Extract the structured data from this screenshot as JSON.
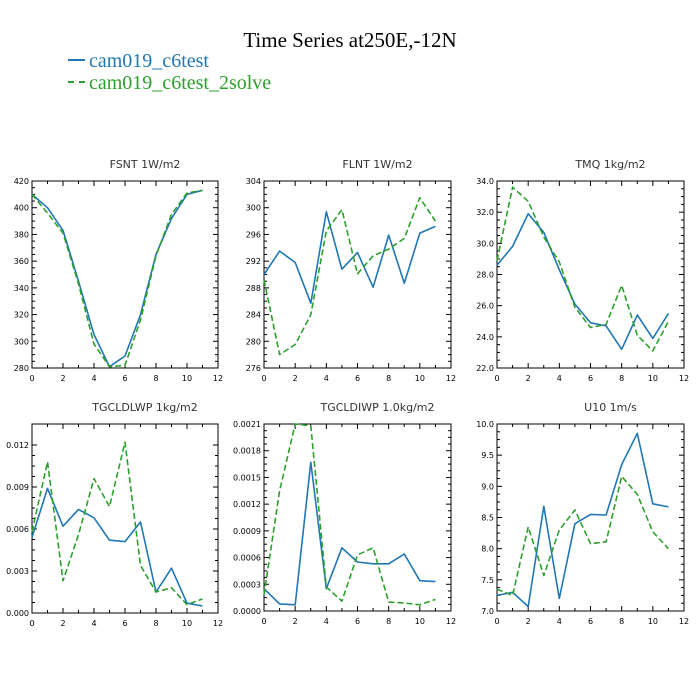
{
  "title": "Time Series at250E,-12N",
  "legend": [
    {
      "name": "cam019_c6test",
      "color": "#1f77b4",
      "dash": false
    },
    {
      "name": "cam019_c6test_2solve",
      "color": "#2ca02c",
      "dash": true
    }
  ],
  "chart_data": [
    {
      "type": "line",
      "title": "FSNT  1W/m2",
      "xlim": [
        0,
        12
      ],
      "xticks": [
        "0",
        "2",
        "4",
        "6",
        "8",
        "10",
        "12"
      ],
      "ylim": [
        280,
        420
      ],
      "yticks": [
        "280",
        "300",
        "320",
        "340",
        "360",
        "380",
        "400",
        "420"
      ],
      "x": [
        0,
        1,
        2,
        3,
        4,
        5,
        6,
        7,
        8,
        9,
        10,
        11
      ],
      "series": [
        {
          "name": "cam019_c6test",
          "values": [
            410,
            400,
            383,
            345,
            305,
            281,
            289,
            320,
            365,
            392,
            410,
            413
          ]
        },
        {
          "name": "cam019_c6test_2solve",
          "values": [
            410,
            396,
            381,
            343,
            298,
            281,
            282,
            316,
            364,
            395,
            411,
            413
          ]
        }
      ]
    },
    {
      "type": "line",
      "title": "FLNT  1W/m2",
      "xlim": [
        0,
        12
      ],
      "xticks": [
        "0",
        "2",
        "4",
        "6",
        "8",
        "10",
        "12"
      ],
      "ylim": [
        276,
        304
      ],
      "yticks": [
        "276",
        "280",
        "284",
        "288",
        "292",
        "296",
        "300",
        "304"
      ],
      "x": [
        0,
        1,
        2,
        3,
        4,
        5,
        6,
        7,
        8,
        9,
        10,
        11
      ],
      "series": [
        {
          "name": "cam019_c6test",
          "values": [
            290,
            293.5,
            291.8,
            285.7,
            299.4,
            290.8,
            293.3,
            288.1,
            295.9,
            288.7,
            296.2,
            297.2
          ]
        },
        {
          "name": "cam019_c6test_2solve",
          "values": [
            289.2,
            278,
            279.5,
            284,
            296.5,
            299.7,
            290.1,
            292.8,
            293.8,
            295.4,
            301.5,
            298
          ]
        }
      ]
    },
    {
      "type": "line",
      "title": "TMQ  1kg/m2",
      "xlim": [
        0,
        12
      ],
      "xticks": [
        "0",
        "2",
        "4",
        "6",
        "8",
        "10",
        "12"
      ],
      "ylim": [
        22,
        34
      ],
      "yticks": [
        "22.0",
        "24.0",
        "26.0",
        "28.0",
        "30.0",
        "32.0",
        "34.0"
      ],
      "x": [
        0,
        1,
        2,
        3,
        4,
        5,
        6,
        7,
        8,
        9,
        10,
        11
      ],
      "series": [
        {
          "name": "cam019_c6test",
          "values": [
            28.6,
            29.8,
            31.9,
            30.7,
            28.3,
            26.1,
            24.9,
            24.7,
            23.2,
            25.4,
            23.9,
            25.5
          ]
        },
        {
          "name": "cam019_c6test_2solve",
          "values": [
            28.9,
            33.6,
            32.7,
            30.4,
            28.8,
            25.9,
            24.6,
            24.8,
            27.3,
            24.1,
            23.1,
            25
          ]
        }
      ]
    },
    {
      "type": "line",
      "title": "TGCLDLWP  1kg/m2",
      "xlim": [
        0,
        12
      ],
      "xticks": [
        "0",
        "2",
        "4",
        "6",
        "8",
        "10",
        "12"
      ],
      "ylim": [
        0,
        0.0135
      ],
      "yticks": [
        "0.000",
        "0.003",
        "0.006",
        "0.009",
        "0.012"
      ],
      "ytick_values": [
        0,
        0.003,
        0.006,
        0.009,
        0.012
      ],
      "x": [
        0,
        1,
        2,
        3,
        4,
        5,
        6,
        7,
        8,
        9,
        10,
        11
      ],
      "series": [
        {
          "name": "cam019_c6test",
          "values": [
            0.0054,
            0.0089,
            0.0062,
            0.0074,
            0.0068,
            0.0052,
            0.0051,
            0.0065,
            0.0015,
            0.0032,
            0.0007,
            0.0005
          ]
        },
        {
          "name": "cam019_c6test_2solve",
          "values": [
            0.0058,
            0.0108,
            0.0023,
            0.0056,
            0.0096,
            0.0076,
            0.0122,
            0.0034,
            0.0015,
            0.0018,
            0.0006,
            0.001
          ]
        }
      ]
    },
    {
      "type": "line",
      "title": "TGCLDIWP  1.0kg/m2",
      "xlim": [
        0,
        12
      ],
      "xticks": [
        "0",
        "2",
        "4",
        "6",
        "8",
        "10",
        "12"
      ],
      "ylim": [
        0,
        0.0021
      ],
      "yticks": [
        "0.0000",
        "0.0003",
        "0.0006",
        "0.0009",
        "0.0012",
        "0.0015",
        "0.0018",
        "0.0021"
      ],
      "ytick_values": [
        0,
        0.0003,
        0.0006,
        0.0009,
        0.0012,
        0.0015,
        0.0018,
        0.0021
      ],
      "x": [
        0,
        1,
        2,
        3,
        4,
        5,
        6,
        7,
        8,
        9,
        10,
        11
      ],
      "series": [
        {
          "name": "cam019_c6test",
          "values": [
            0.00025,
            8e-05,
            7e-05,
            0.00167,
            0.00025,
            0.00071,
            0.00055,
            0.00053,
            0.00053,
            0.00064,
            0.00034,
            0.00033
          ]
        },
        {
          "name": "cam019_c6test_2solve",
          "values": [
            0.00018,
            0.00135,
            0.0021,
            0.00208,
            0.00027,
            0.00011,
            0.00063,
            0.00071,
            0.0001,
            9e-05,
            7e-05,
            0.00013
          ]
        }
      ]
    },
    {
      "type": "line",
      "title": "U10  1m/s",
      "xlim": [
        0,
        12
      ],
      "xticks": [
        "0",
        "2",
        "4",
        "6",
        "8",
        "10",
        "12"
      ],
      "ylim": [
        7,
        10
      ],
      "yticks": [
        "7.0",
        "7.5",
        "8.0",
        "8.5",
        "9.0",
        "9.5",
        "10.0"
      ],
      "ytick_values": [
        7,
        7.5,
        8,
        8.5,
        9,
        9.5,
        10
      ],
      "x": [
        0,
        1,
        2,
        3,
        4,
        5,
        6,
        7,
        8,
        9,
        10,
        11
      ],
      "series": [
        {
          "name": "cam019_c6test",
          "values": [
            7.25,
            7.3,
            7.07,
            8.68,
            7.2,
            8.4,
            8.55,
            8.54,
            9.35,
            9.85,
            8.72,
            8.67
          ]
        },
        {
          "name": "cam019_c6test_2solve",
          "values": [
            7.35,
            7.25,
            8.35,
            7.57,
            8.3,
            8.62,
            8.08,
            8.11,
            9.16,
            8.87,
            8.27,
            8.0
          ]
        }
      ]
    }
  ]
}
